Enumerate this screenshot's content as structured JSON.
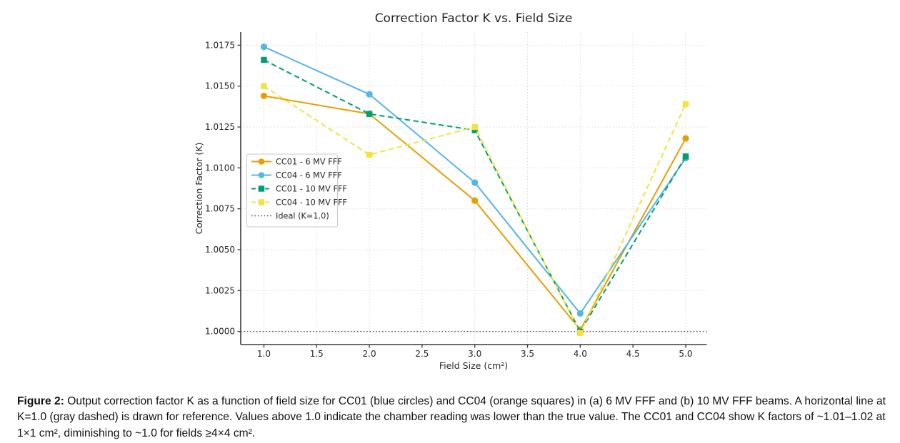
{
  "figure": {
    "caption_label": "Figure 2:",
    "caption_text": " Output correction factor K as a function of field size for CC01 (blue circles) and CC04 (orange squares) in (a) 6 MV FFF and (b) 10 MV FFF beams. A horizontal line at K=1.0 (gray dashed) is drawn for reference. Values above 1.0 indicate the chamber reading was lower than the true value. The CC01 and CC04 show K factors of ~1.01–1.02 at 1×1 cm², diminishing to ~1.0 for fields ≥4×4 cm²."
  },
  "chart_data": {
    "type": "line",
    "title": "Correction Factor K vs. Field Size",
    "xlabel": "Field Size (cm²)",
    "ylabel": "Correction Factor (K)",
    "x": [
      1.0,
      2.0,
      3.0,
      4.0,
      5.0
    ],
    "x_ticks": [
      1.0,
      1.5,
      2.0,
      2.5,
      3.0,
      3.5,
      4.0,
      4.5,
      5.0
    ],
    "y_ticks": [
      1.0,
      1.0025,
      1.005,
      1.0075,
      1.01,
      1.0125,
      1.015,
      1.0175
    ],
    "xlim": [
      0.78,
      5.2
    ],
    "ylim": [
      0.9992,
      1.0183
    ],
    "grid": true,
    "legend_position": "center-left",
    "series": [
      {
        "name": "CC01 - 6 MV FFF",
        "color": "#E69F00",
        "line_style": "solid",
        "marker": "circle",
        "values": [
          1.0144,
          1.0133,
          1.008,
          1.0001,
          1.0118
        ]
      },
      {
        "name": "CC04 - 6 MV FFF",
        "color": "#56B4E9",
        "line_style": "solid",
        "marker": "circle",
        "values": [
          1.0174,
          1.0145,
          1.0091,
          1.0011,
          1.0106
        ]
      },
      {
        "name": "CC01 - 10 MV FFF",
        "color": "#009E73",
        "line_style": "dashed",
        "marker": "square",
        "values": [
          1.0166,
          1.0133,
          1.0123,
          1.0,
          1.0107
        ]
      },
      {
        "name": "CC04 - 10 MV FFF",
        "color": "#F0E442",
        "line_style": "dashed",
        "marker": "square",
        "values": [
          1.015,
          1.0108,
          1.0125,
          0.9999,
          1.0139
        ]
      }
    ],
    "reference_line": {
      "name": "Ideal (K=1.0)",
      "value": 1.0,
      "color": "#555555",
      "line_style": "dotted"
    }
  }
}
